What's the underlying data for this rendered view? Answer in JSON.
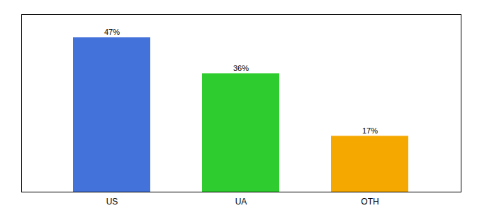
{
  "chart_data": {
    "type": "bar",
    "categories": [
      "US",
      "UA",
      "OTH"
    ],
    "values": [
      47,
      36,
      17
    ],
    "value_labels": [
      "47%",
      "36%",
      "17%"
    ],
    "colors": [
      "#4472db",
      "#2ecc2e",
      "#f5a800"
    ],
    "ylim": [
      0,
      54
    ],
    "data_labels": true,
    "tick_labels": "x",
    "grid": false
  }
}
